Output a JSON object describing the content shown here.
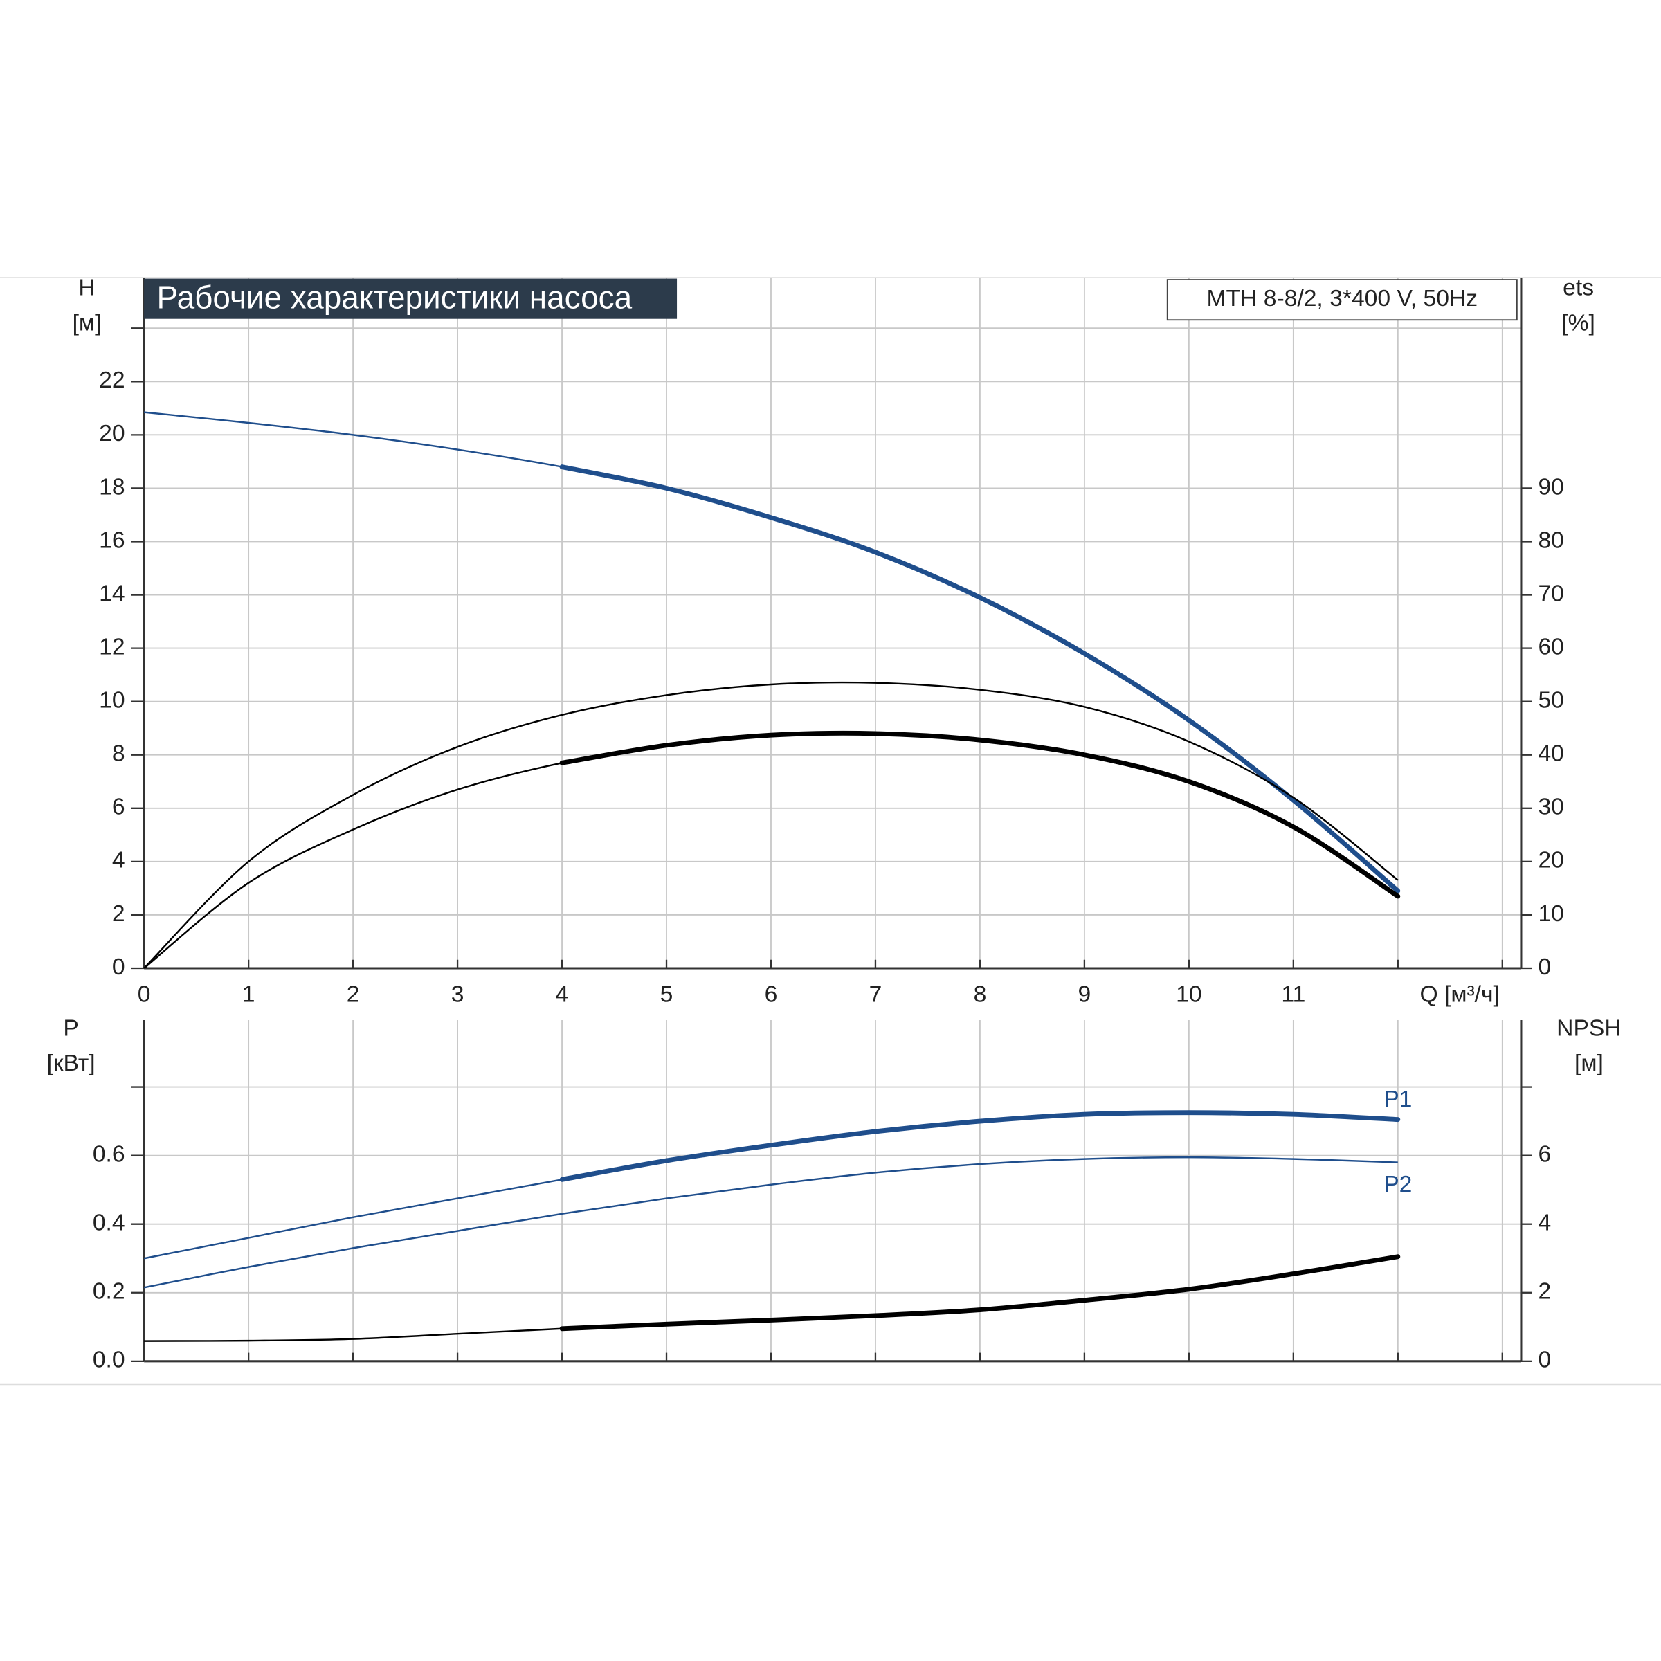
{
  "chart_data": [
    {
      "type": "line",
      "title": "Рабочие характеристики насоса",
      "subtitle": "MTH 8-8/2, 3*400 V, 50Hz",
      "xlabel": "Q [м³/ч]",
      "ylabel": "H",
      "yunit": "[м]",
      "y2label": "ets",
      "y2unit": "[%]",
      "x": [
        0,
        1,
        2,
        3,
        4,
        5,
        6,
        7,
        8,
        9,
        10,
        11,
        12
      ],
      "xlim": [
        0,
        13.18
      ],
      "xticks": [
        0,
        1,
        2,
        3,
        4,
        5,
        6,
        7,
        8,
        9,
        10,
        11,
        {
          "value": 12,
          "label": null
        },
        {
          "value": 13,
          "label": null
        }
      ],
      "ylim": [
        0,
        25.9
      ],
      "yticks": [
        0,
        2,
        4,
        6,
        8,
        10,
        12,
        14,
        16,
        18,
        20,
        22,
        {
          "value": 24,
          "label": null
        }
      ],
      "y2lim": [
        0,
        129.5
      ],
      "y2ticks": [
        0,
        10,
        20,
        30,
        40,
        50,
        60,
        70,
        80,
        90
      ],
      "grid": true,
      "series": [
        {
          "color": "#1f4e8c",
          "bold_from": 4,
          "values": [
            20.85,
            20.45,
            20.0,
            19.45,
            18.8,
            18.0,
            16.9,
            15.6,
            13.9,
            11.8,
            9.3,
            6.3,
            2.9
          ]
        },
        {
          "color": "#000000",
          "axis": "y2",
          "values": [
            0,
            20,
            32.5,
            41.5,
            47.5,
            51.2,
            53.2,
            53.5,
            52.2,
            49,
            42.5,
            32,
            16.5
          ]
        },
        {
          "color": "#000000",
          "axis": "y2",
          "bold_from": 4,
          "values": [
            0,
            16,
            26,
            33.5,
            38.5,
            41.8,
            43.7,
            44,
            42.8,
            40,
            35,
            26.5,
            13.5
          ]
        }
      ]
    },
    {
      "type": "line",
      "ylabel": "P",
      "yunit": "[кВт]",
      "y2label": "NPSH",
      "y2unit": "[м]",
      "x": [
        0,
        1,
        2,
        3,
        4,
        5,
        6,
        7,
        8,
        9,
        10,
        11,
        12
      ],
      "xlim": [
        0,
        13.18
      ],
      "xticks": [
        {
          "value": 0,
          "label": null
        },
        {
          "value": 1,
          "label": null
        },
        {
          "value": 2,
          "label": null
        },
        {
          "value": 3,
          "label": null
        },
        {
          "value": 4,
          "label": null
        },
        {
          "value": 5,
          "label": null
        },
        {
          "value": 6,
          "label": null
        },
        {
          "value": 7,
          "label": null
        },
        {
          "value": 8,
          "label": null
        },
        {
          "value": 9,
          "label": null
        },
        {
          "value": 10,
          "label": null
        },
        {
          "value": 11,
          "label": null
        },
        {
          "value": 12,
          "label": null
        },
        {
          "value": 13,
          "label": null
        }
      ],
      "ylim": [
        0,
        0.995
      ],
      "yticks": [
        {
          "value": 0,
          "label": "0.0"
        },
        0.2,
        0.4,
        0.6,
        {
          "value": 0.8,
          "label": null
        }
      ],
      "y2lim": [
        0,
        9.95
      ],
      "y2ticks": [
        0,
        2,
        4,
        6,
        {
          "value": 8,
          "label": null
        }
      ],
      "grid": true,
      "series": [
        {
          "name": "P1",
          "color": "#1f4e8c",
          "bold_from": 4,
          "values": [
            0.3,
            0.36,
            0.42,
            0.475,
            0.53,
            0.585,
            0.63,
            0.67,
            0.7,
            0.72,
            0.725,
            0.72,
            0.705
          ]
        },
        {
          "name": "P2",
          "color": "#1f4e8c",
          "values": [
            0.215,
            0.275,
            0.33,
            0.38,
            0.43,
            0.475,
            0.515,
            0.55,
            0.575,
            0.59,
            0.595,
            0.59,
            0.58
          ]
        },
        {
          "color": "#000000",
          "axis": "y2",
          "bold_from": 4,
          "values": [
            0.59,
            0.6,
            0.65,
            0.8,
            0.95,
            1.08,
            1.2,
            1.33,
            1.5,
            1.78,
            2.1,
            2.55,
            3.05
          ]
        }
      ]
    }
  ]
}
